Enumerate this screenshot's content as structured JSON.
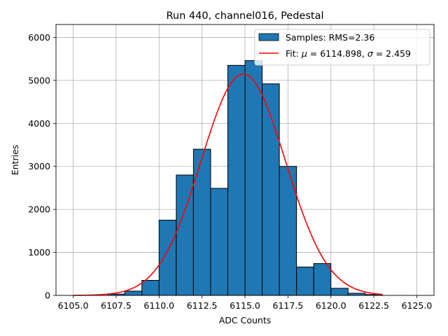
{
  "chart_data": {
    "type": "bar",
    "title": "Run 440, channel016, Pedestal",
    "xlabel": "ADC Counts",
    "ylabel": "Entries",
    "xlim": [
      6104.0,
      6126.0
    ],
    "ylim": [
      0,
      6300
    ],
    "x_ticks": [
      6105.0,
      6107.5,
      6110.0,
      6112.5,
      6115.0,
      6117.5,
      6120.0,
      6122.5,
      6125.0
    ],
    "x_tick_labels": [
      "6105.0",
      "6107.5",
      "6110.0",
      "6112.5",
      "6115.0",
      "6117.5",
      "6120.0",
      "6122.5",
      "6125.0"
    ],
    "y_ticks": [
      0,
      1000,
      2000,
      3000,
      4000,
      5000,
      6000
    ],
    "y_tick_labels": [
      "0",
      "1000",
      "2000",
      "3000",
      "4000",
      "5000",
      "6000"
    ],
    "grid": true,
    "legend_position": "top-right",
    "bin_width": 1,
    "series": [
      {
        "name": "Samples: RMS=2.36",
        "kind": "histogram",
        "color": "#1f77b4",
        "edge_color": "#000000",
        "bin_starts": [
          6107,
          6108,
          6109,
          6110,
          6111,
          6112,
          6113,
          6114,
          6115,
          6116,
          6117,
          6118,
          6119,
          6120,
          6121,
          6122
        ],
        "values": [
          30,
          100,
          350,
          1750,
          2800,
          3400,
          2490,
          5350,
          5460,
          4920,
          3000,
          660,
          740,
          165,
          50,
          20
        ]
      },
      {
        "name_prefix": "Fit: ",
        "name_mu": "μ",
        "name_mid": " = 6114.898, ",
        "name_sigma": "σ",
        "name_suffix": " = 2.459",
        "kind": "gaussian-fit",
        "color": "#ff0000",
        "mu": 6114.898,
        "sigma": 2.459,
        "amplitude": 5150,
        "x_range": [
          6105.0,
          6123.0
        ]
      }
    ]
  }
}
